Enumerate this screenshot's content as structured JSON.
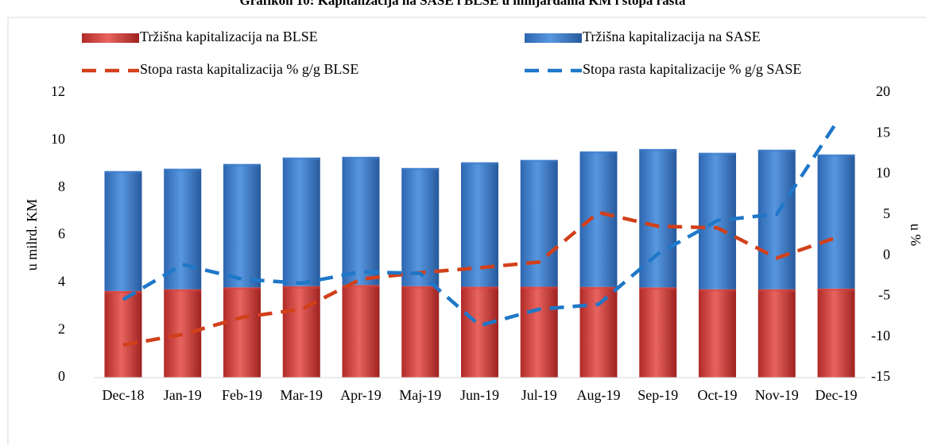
{
  "chart_data": {
    "type": "bar",
    "title": "Grafikon 10: Kapitalizacija na SASE i BLSE u milijardama KM i stopa rasta",
    "y_label": "u milrd. KM",
    "y2_label": "u %",
    "categories": [
      "Dec-18",
      "Jan-19",
      "Feb-19",
      "Mar-19",
      "Apr-19",
      "Maj-19",
      "Jun-19",
      "Jul-19",
      "Aug-19",
      "Sep-19",
      "Oct-19",
      "Nov-19",
      "Dec-19"
    ],
    "series": [
      {
        "name": "Tržišna kapitalizacija na BLSE",
        "type": "bar",
        "color": "#d9423e",
        "values": [
          3.65,
          3.72,
          3.8,
          3.85,
          3.9,
          3.85,
          3.83,
          3.83,
          3.82,
          3.8,
          3.72,
          3.72,
          3.75
        ]
      },
      {
        "name": "Tržišna kapitalizacija na SASE",
        "type": "bar",
        "color": "#3e7fd0",
        "values": [
          5.05,
          5.08,
          5.2,
          5.42,
          5.4,
          4.98,
          5.24,
          5.34,
          5.71,
          5.83,
          5.75,
          5.88,
          5.65
        ]
      },
      {
        "name": "Stopa rasta kapitalizacija % g/g BLSE",
        "type": "line",
        "axis": "y2",
        "color": "#d2401a",
        "values": [
          -11,
          -9.7,
          -7.6,
          -6.6,
          -2.9,
          -2.1,
          -1.5,
          -0.8,
          5.3,
          3.6,
          3.4,
          -0.3,
          2.2
        ]
      },
      {
        "name": "Stopa rasta kapitalizacije % g/g SASE",
        "type": "line",
        "axis": "y2",
        "color": "#1f77c8",
        "values": [
          -5.4,
          -1.1,
          -2.9,
          -3.4,
          -2.0,
          -2.2,
          -8.6,
          -6.6,
          -6.0,
          0.2,
          4.3,
          5.1,
          16.3
        ]
      }
    ],
    "stacked": true,
    "ylim": [
      0,
      12
    ],
    "yticks": [
      0,
      2,
      4,
      6,
      8,
      10,
      12
    ],
    "y2lim": [
      -15,
      20
    ],
    "y2ticks": [
      -15,
      -10,
      -5,
      0,
      5,
      10,
      15,
      20
    ]
  }
}
